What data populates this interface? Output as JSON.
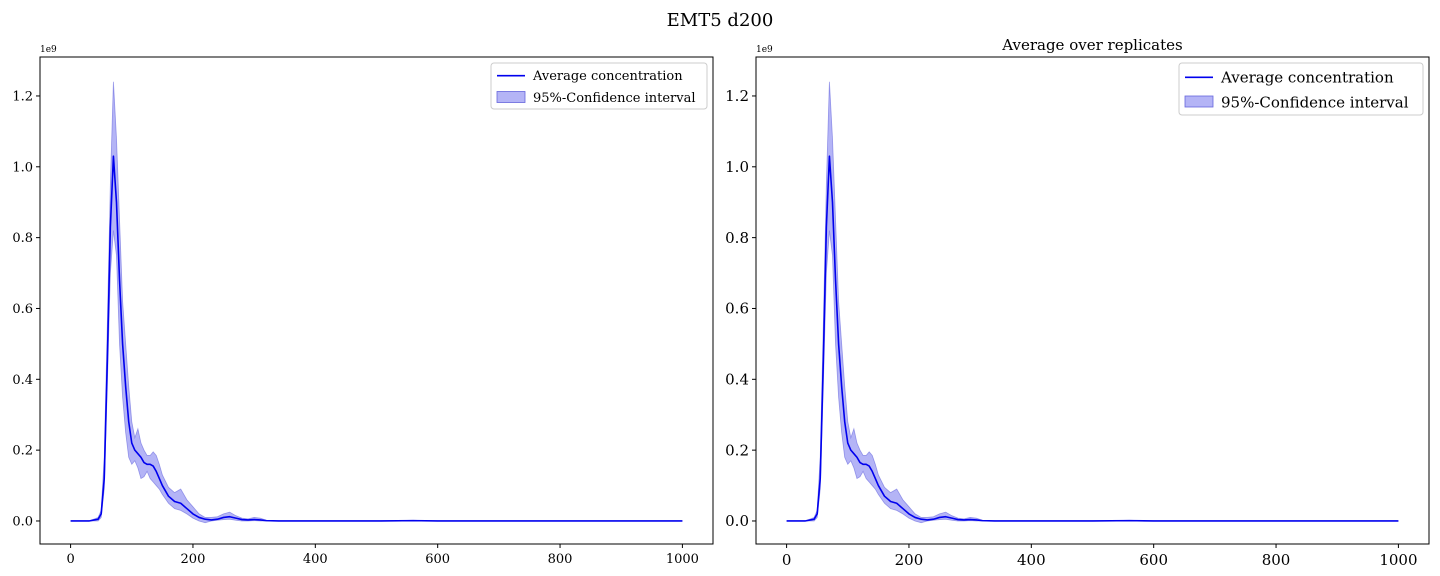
{
  "figure": {
    "suptitle": "EMT5 d200"
  },
  "colors": {
    "line": "#0000ee",
    "band": "#7777ee",
    "band_edge": "#6666dd",
    "axes": "#000000",
    "background": "#ffffff"
  },
  "chart_data": [
    {
      "type": "line",
      "title": "",
      "xlabel": "",
      "ylabel": "",
      "y_offset_label": "1e9",
      "xlim": [
        -50,
        1050
      ],
      "ylim": [
        -0.065,
        1.31
      ],
      "xticks": [
        0,
        200,
        400,
        600,
        800,
        1000
      ],
      "yticks": [
        0.0,
        0.2,
        0.4,
        0.6,
        0.8,
        1.0,
        1.2
      ],
      "xtick_labels": [
        "0",
        "200",
        "400",
        "600",
        "800",
        "1000"
      ],
      "ytick_labels": [
        "0.0",
        "0.2",
        "0.4",
        "0.6",
        "0.8",
        "1.0",
        "1.2"
      ],
      "grid": false,
      "legend_position": "top-right",
      "series": [
        {
          "name": "Average concentration",
          "kind": "line",
          "x": [
            0,
            30,
            45,
            50,
            55,
            60,
            65,
            70,
            75,
            80,
            85,
            90,
            95,
            100,
            105,
            110,
            115,
            120,
            125,
            130,
            135,
            140,
            145,
            150,
            160,
            170,
            180,
            190,
            200,
            210,
            220,
            230,
            240,
            250,
            260,
            270,
            280,
            290,
            300,
            310,
            320,
            340,
            400,
            500,
            560,
            600,
            700,
            800,
            900,
            1000
          ],
          "y": [
            0,
            0,
            0.005,
            0.02,
            0.12,
            0.45,
            0.83,
            1.03,
            0.9,
            0.68,
            0.5,
            0.38,
            0.28,
            0.22,
            0.2,
            0.19,
            0.18,
            0.165,
            0.16,
            0.16,
            0.155,
            0.14,
            0.12,
            0.1,
            0.07,
            0.055,
            0.05,
            0.035,
            0.02,
            0.01,
            0.005,
            0.003,
            0.005,
            0.01,
            0.012,
            0.008,
            0.004,
            0.003,
            0.004,
            0.003,
            0.001,
            0,
            0,
            0,
            0.001,
            0,
            0,
            0,
            0,
            0
          ]
        },
        {
          "name": "95%-Confidence interval",
          "kind": "band",
          "x": [
            0,
            30,
            45,
            50,
            55,
            60,
            65,
            70,
            75,
            80,
            85,
            90,
            95,
            100,
            105,
            110,
            115,
            120,
            125,
            130,
            135,
            140,
            145,
            150,
            160,
            170,
            180,
            190,
            200,
            210,
            220,
            230,
            240,
            250,
            260,
            270,
            280,
            290,
            300,
            310,
            320,
            340,
            400,
            500,
            560,
            600,
            700,
            800,
            900,
            1000
          ],
          "lower": [
            0,
            0,
            0,
            0.01,
            0.09,
            0.38,
            0.7,
            0.82,
            0.75,
            0.5,
            0.35,
            0.25,
            0.18,
            0.16,
            0.17,
            0.15,
            0.12,
            0.125,
            0.14,
            0.12,
            0.11,
            0.1,
            0.09,
            0.075,
            0.05,
            0.035,
            0.03,
            0.02,
            0.008,
            0,
            -0.005,
            0,
            0.002,
            0.004,
            0.005,
            0.002,
            0,
            0,
            0.001,
            0,
            0,
            0,
            0,
            0,
            0,
            0,
            0,
            0,
            0,
            0
          ],
          "upper": [
            0,
            0,
            0.01,
            0.03,
            0.18,
            0.55,
            0.95,
            1.24,
            1.08,
            0.85,
            0.62,
            0.5,
            0.38,
            0.28,
            0.235,
            0.26,
            0.22,
            0.2,
            0.185,
            0.185,
            0.195,
            0.185,
            0.16,
            0.13,
            0.095,
            0.08,
            0.09,
            0.06,
            0.04,
            0.02,
            0.01,
            0.01,
            0.012,
            0.02,
            0.025,
            0.015,
            0.008,
            0.006,
            0.01,
            0.008,
            0.002,
            0,
            0,
            0,
            0.002,
            0,
            0,
            0,
            0,
            0
          ]
        }
      ]
    },
    {
      "type": "line",
      "title": "Average over replicates",
      "xlabel": "",
      "ylabel": "",
      "y_offset_label": "1e9",
      "xlim": [
        -50,
        1050
      ],
      "ylim": [
        -0.065,
        1.31
      ],
      "xticks": [
        0,
        200,
        400,
        600,
        800,
        1000
      ],
      "yticks": [
        0.0,
        0.2,
        0.4,
        0.6,
        0.8,
        1.0,
        1.2
      ],
      "xtick_labels": [
        "0",
        "200",
        "400",
        "600",
        "800",
        "1000"
      ],
      "ytick_labels": [
        "0.0",
        "0.2",
        "0.4",
        "0.6",
        "0.8",
        "1.0",
        "1.2"
      ],
      "grid": false,
      "legend_position": "top-right",
      "series": [
        {
          "name": "Average concentration",
          "kind": "line",
          "x": [
            0,
            30,
            45,
            50,
            55,
            60,
            65,
            70,
            75,
            80,
            85,
            90,
            95,
            100,
            105,
            110,
            115,
            120,
            125,
            130,
            135,
            140,
            145,
            150,
            160,
            170,
            180,
            190,
            200,
            210,
            220,
            230,
            240,
            250,
            260,
            270,
            280,
            290,
            300,
            310,
            320,
            340,
            400,
            500,
            560,
            600,
            700,
            800,
            900,
            1000
          ],
          "y": [
            0,
            0,
            0.005,
            0.02,
            0.12,
            0.45,
            0.83,
            1.03,
            0.9,
            0.68,
            0.5,
            0.38,
            0.28,
            0.22,
            0.2,
            0.19,
            0.18,
            0.165,
            0.16,
            0.16,
            0.155,
            0.14,
            0.12,
            0.1,
            0.07,
            0.055,
            0.05,
            0.035,
            0.02,
            0.01,
            0.005,
            0.003,
            0.005,
            0.01,
            0.012,
            0.008,
            0.004,
            0.003,
            0.004,
            0.003,
            0.001,
            0,
            0,
            0,
            0.001,
            0,
            0,
            0,
            0,
            0
          ]
        },
        {
          "name": "95%-Confidence interval",
          "kind": "band",
          "x": [
            0,
            30,
            45,
            50,
            55,
            60,
            65,
            70,
            75,
            80,
            85,
            90,
            95,
            100,
            105,
            110,
            115,
            120,
            125,
            130,
            135,
            140,
            145,
            150,
            160,
            170,
            180,
            190,
            200,
            210,
            220,
            230,
            240,
            250,
            260,
            270,
            280,
            290,
            300,
            310,
            320,
            340,
            400,
            500,
            560,
            600,
            700,
            800,
            900,
            1000
          ],
          "lower": [
            0,
            0,
            0,
            0.01,
            0.09,
            0.38,
            0.7,
            0.82,
            0.75,
            0.5,
            0.35,
            0.25,
            0.18,
            0.16,
            0.17,
            0.15,
            0.12,
            0.125,
            0.14,
            0.12,
            0.11,
            0.1,
            0.09,
            0.075,
            0.05,
            0.035,
            0.03,
            0.02,
            0.008,
            0,
            -0.005,
            0,
            0.002,
            0.004,
            0.005,
            0.002,
            0,
            0,
            0.001,
            0,
            0,
            0,
            0,
            0,
            0,
            0,
            0,
            0,
            0,
            0
          ],
          "upper": [
            0,
            0,
            0.01,
            0.03,
            0.18,
            0.55,
            0.95,
            1.24,
            1.08,
            0.85,
            0.62,
            0.5,
            0.38,
            0.28,
            0.235,
            0.26,
            0.22,
            0.2,
            0.185,
            0.185,
            0.195,
            0.185,
            0.16,
            0.13,
            0.095,
            0.08,
            0.09,
            0.06,
            0.04,
            0.02,
            0.01,
            0.01,
            0.012,
            0.02,
            0.025,
            0.015,
            0.008,
            0.006,
            0.01,
            0.008,
            0.002,
            0,
            0,
            0,
            0.002,
            0,
            0,
            0,
            0,
            0
          ]
        }
      ]
    }
  ]
}
